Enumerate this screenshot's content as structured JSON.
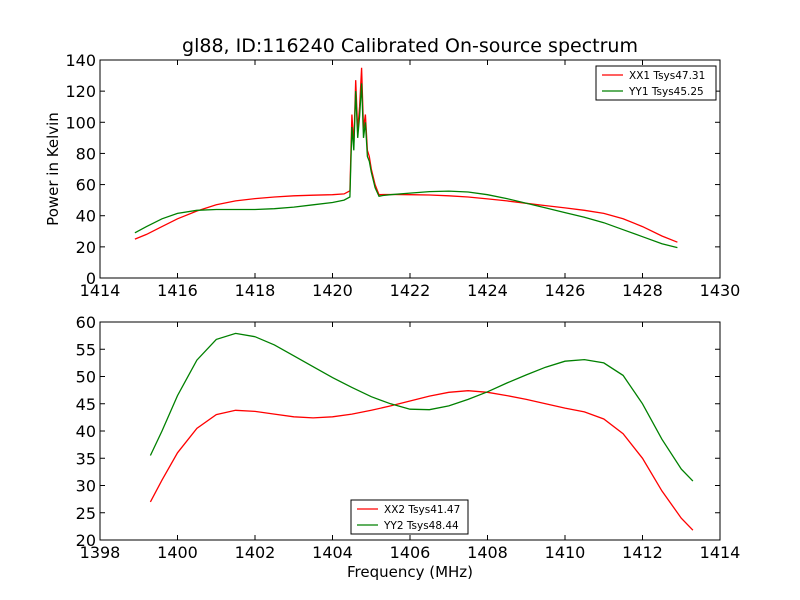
{
  "chart_data": [
    {
      "type": "line",
      "title": "gl88, ID:116240 Calibrated On-source spectrum",
      "xlabel": "",
      "ylabel": "Power in Kelvin",
      "xlim": [
        1414,
        1430
      ],
      "ylim": [
        0,
        140
      ],
      "xticks": [
        1414,
        1416,
        1418,
        1420,
        1422,
        1424,
        1426,
        1428,
        1430
      ],
      "yticks": [
        0,
        20,
        40,
        60,
        80,
        100,
        120,
        140
      ],
      "legend_position": "top-right",
      "series": [
        {
          "name": "XX1 Tsys47.31",
          "color": "#ff0000",
          "x": [
            1414.9,
            1415.2,
            1415.6,
            1416.0,
            1416.5,
            1417.0,
            1417.5,
            1418.0,
            1418.5,
            1419.0,
            1419.5,
            1420.0,
            1420.3,
            1420.45,
            1420.5,
            1420.55,
            1420.6,
            1420.65,
            1420.7,
            1420.75,
            1420.8,
            1420.85,
            1420.9,
            1420.95,
            1421.0,
            1421.1,
            1421.2,
            1421.3,
            1421.5,
            1422.0,
            1422.5,
            1423.0,
            1423.5,
            1424.0,
            1424.5,
            1425.0,
            1425.5,
            1426.0,
            1426.5,
            1427.0,
            1427.5,
            1428.0,
            1428.5,
            1428.9
          ],
          "values": [
            25,
            28,
            33,
            38,
            43,
            47,
            49.5,
            51,
            52,
            52.8,
            53.2,
            53.5,
            54,
            56,
            105,
            85,
            127,
            95,
            110,
            135,
            96,
            105,
            82,
            78,
            70,
            60,
            53.5,
            53.6,
            53.6,
            53.5,
            53.3,
            52.8,
            52,
            50.8,
            49.5,
            48,
            46.5,
            45,
            43.5,
            41.5,
            38,
            33,
            27,
            23
          ]
        },
        {
          "name": "YY1 Tsys45.25",
          "color": "#008000",
          "x": [
            1414.9,
            1415.2,
            1415.6,
            1416.0,
            1416.5,
            1417.0,
            1417.5,
            1418.0,
            1418.5,
            1419.0,
            1419.5,
            1420.0,
            1420.3,
            1420.45,
            1420.5,
            1420.55,
            1420.6,
            1420.65,
            1420.7,
            1420.75,
            1420.8,
            1420.85,
            1420.9,
            1420.95,
            1421.0,
            1421.1,
            1421.2,
            1421.3,
            1421.5,
            1422.0,
            1422.5,
            1423.0,
            1423.5,
            1424.0,
            1424.5,
            1425.0,
            1425.5,
            1426.0,
            1426.5,
            1427.0,
            1427.5,
            1428.0,
            1428.5,
            1428.9
          ],
          "values": [
            29,
            33,
            38,
            41.5,
            43.5,
            44,
            44,
            44,
            44.5,
            45.5,
            47,
            48.5,
            50,
            52,
            97,
            82,
            120,
            90,
            104,
            125,
            90,
            100,
            78,
            75,
            68,
            58,
            52.5,
            53,
            53.5,
            54.5,
            55.5,
            55.8,
            55.2,
            53.5,
            51,
            48,
            45,
            42,
            39,
            35.5,
            31,
            26.5,
            22,
            19.5
          ]
        }
      ]
    },
    {
      "type": "line",
      "title": "",
      "xlabel": "Frequency (MHz)",
      "ylabel": "",
      "xlim": [
        1398,
        1414
      ],
      "ylim": [
        20,
        60
      ],
      "xticks": [
        1398,
        1400,
        1402,
        1404,
        1406,
        1408,
        1410,
        1412,
        1414
      ],
      "yticks": [
        20,
        25,
        30,
        35,
        40,
        45,
        50,
        55,
        60
      ],
      "legend_position": "bottom-center",
      "series": [
        {
          "name": "XX2 Tsys41.47",
          "color": "#ff0000",
          "x": [
            1399.3,
            1399.6,
            1400.0,
            1400.5,
            1401.0,
            1401.5,
            1402.0,
            1402.5,
            1403.0,
            1403.5,
            1404.0,
            1404.5,
            1405.0,
            1405.5,
            1406.0,
            1406.5,
            1407.0,
            1407.5,
            1408.0,
            1408.5,
            1409.0,
            1409.5,
            1410.0,
            1410.5,
            1411.0,
            1411.5,
            1412.0,
            1412.5,
            1413.0,
            1413.3
          ],
          "values": [
            27,
            31,
            36,
            40.5,
            43,
            43.8,
            43.6,
            43.1,
            42.6,
            42.4,
            42.6,
            43.1,
            43.8,
            44.6,
            45.5,
            46.4,
            47.1,
            47.4,
            47.1,
            46.5,
            45.8,
            45,
            44.2,
            43.5,
            42.2,
            39.5,
            35,
            29,
            24,
            21.8
          ]
        },
        {
          "name": "YY2 Tsys48.44",
          "color": "#008000",
          "x": [
            1399.3,
            1399.6,
            1400.0,
            1400.5,
            1401.0,
            1401.5,
            1402.0,
            1402.5,
            1403.0,
            1403.5,
            1404.0,
            1404.5,
            1405.0,
            1405.5,
            1406.0,
            1406.5,
            1407.0,
            1407.5,
            1408.0,
            1408.5,
            1409.0,
            1409.5,
            1410.0,
            1410.5,
            1411.0,
            1411.5,
            1412.0,
            1412.5,
            1413.0,
            1413.3
          ],
          "values": [
            35.5,
            40,
            46.5,
            53,
            56.8,
            57.9,
            57.3,
            55.8,
            53.8,
            51.8,
            49.8,
            48,
            46.3,
            45,
            44,
            43.9,
            44.6,
            45.8,
            47.2,
            48.8,
            50.3,
            51.7,
            52.8,
            53.1,
            52.5,
            50.2,
            45,
            38.5,
            33,
            30.8
          ]
        }
      ]
    }
  ]
}
